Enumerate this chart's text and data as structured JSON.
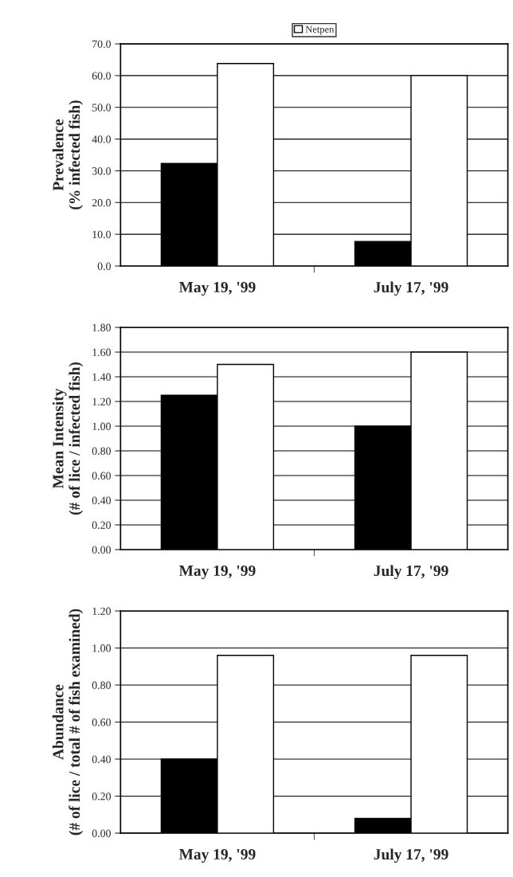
{
  "chart_data": [
    {
      "type": "bar",
      "categories": [
        "May 19, '99",
        "July 17, '99"
      ],
      "ylabel": "Prevalence\n(% infected fish)",
      "ylim": [
        0,
        70
      ],
      "yticks": [
        {
          "value": 0,
          "label": "0.0"
        },
        {
          "value": 10,
          "label": "10.0"
        },
        {
          "value": 20,
          "label": "20.0"
        },
        {
          "value": 30,
          "label": "30.0"
        },
        {
          "value": 40,
          "label": "40.0"
        },
        {
          "value": 50,
          "label": "50.0"
        },
        {
          "value": 60,
          "label": "60.0"
        },
        {
          "value": 70,
          "label": "70.0"
        }
      ],
      "grid": "y",
      "legend": "top",
      "series": [
        {
          "color": "#000000",
          "values": [
            32.3,
            7.7
          ]
        },
        {
          "name": "Netpen",
          "color": "#ffffff",
          "values": [
            63.8,
            60.0
          ]
        }
      ]
    },
    {
      "type": "bar",
      "categories": [
        "May 19, '99",
        "July 17, '99"
      ],
      "ylabel": "Mean Intensity\n(# of lice / infected fish)",
      "ylim": [
        0,
        1.8
      ],
      "yticks": [
        {
          "value": 0,
          "label": "0.00"
        },
        {
          "value": 0.2,
          "label": "0.20"
        },
        {
          "value": 0.4,
          "label": "0.40"
        },
        {
          "value": 0.6,
          "label": "0.60"
        },
        {
          "value": 0.8,
          "label": "0.80"
        },
        {
          "value": 1.0,
          "label": "1.00"
        },
        {
          "value": 1.2,
          "label": "1.20"
        },
        {
          "value": 1.4,
          "label": "1.40"
        },
        {
          "value": 1.6,
          "label": "1.60"
        },
        {
          "value": 1.8,
          "label": "1.80"
        }
      ],
      "grid": "y",
      "series": [
        {
          "color": "#000000",
          "values": [
            1.25,
            1.0
          ]
        },
        {
          "color": "#ffffff",
          "values": [
            1.5,
            1.6
          ]
        }
      ]
    },
    {
      "type": "bar",
      "categories": [
        "May 19, '99",
        "July 17, '99"
      ],
      "ylabel": "Abundance\n(# of lice / total # of fish examined)",
      "ylim": [
        0,
        1.2
      ],
      "yticks": [
        {
          "value": 0,
          "label": "0.00"
        },
        {
          "value": 0.2,
          "label": "0.20"
        },
        {
          "value": 0.4,
          "label": "0.40"
        },
        {
          "value": 0.6,
          "label": "0.60"
        },
        {
          "value": 0.8,
          "label": "0.80"
        },
        {
          "value": 1.0,
          "label": "1.00"
        },
        {
          "value": 1.2,
          "label": "1.20"
        }
      ],
      "grid": "y",
      "series": [
        {
          "color": "#000000",
          "values": [
            0.4,
            0.08
          ]
        },
        {
          "color": "#ffffff",
          "values": [
            0.96,
            0.96
          ]
        }
      ]
    }
  ]
}
